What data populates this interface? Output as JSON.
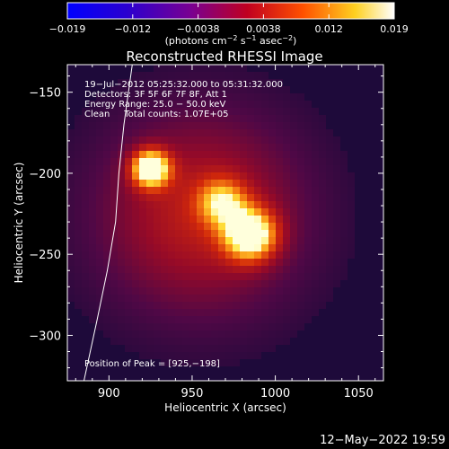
{
  "colorbar": {
    "ticks": [
      "−0.019",
      "−0.012",
      "−0.0038",
      "0.0038",
      "0.012",
      "0.019"
    ],
    "units": "(photons cm",
    "units_exp1": "−2",
    "units_mid": " s",
    "units_exp2": "−1",
    "units_mid2": " asec",
    "units_exp3": "−2",
    "units_end": ")",
    "range": [
      -0.019,
      0.019
    ]
  },
  "footer": {
    "date": "12−May−2022 19:59"
  },
  "chart_data": {
    "type": "heatmap",
    "title": "Reconstructed RHESSI Image",
    "xlabel": "Heliocentric X (arcsec)",
    "ylabel": "Heliocentric Y (arcsec)",
    "xlim": [
      875,
      1065
    ],
    "ylim": [
      -328,
      -133
    ],
    "x_ticks": [
      {
        "value": 900,
        "label": "900"
      },
      {
        "value": 950,
        "label": "950"
      },
      {
        "value": 1000,
        "label": "1000"
      },
      {
        "value": 1050,
        "label": "1050"
      }
    ],
    "y_ticks": [
      {
        "value": -150,
        "label": "−150"
      },
      {
        "value": -200,
        "label": "−200"
      },
      {
        "value": -250,
        "label": "−250"
      },
      {
        "value": -300,
        "label": "−300"
      }
    ],
    "annotations": [
      "19−Jul−2012 05:25:32.000 to 05:31:32.000",
      "Detectors: 3F 5F 6F 7F 8F, Att 1",
      "Energy Range: 25.0 − 50.0 keV",
      "Clean     Total counts: 1.07E+05"
    ],
    "peak_label": "Position of Peak = [925,−198]",
    "peak": {
      "x": 925,
      "y": -198
    },
    "sources": [
      {
        "x": 925,
        "y": -197,
        "peak": 1.0,
        "width": 8
      },
      {
        "x": 985,
        "y": -238,
        "peak": 0.92,
        "width": 11
      },
      {
        "x": 968,
        "y": -218,
        "peak": 0.55,
        "width": 10
      }
    ],
    "limb_curve": [
      [
        914,
        -133
      ],
      [
        909,
        -170
      ],
      [
        906,
        -200
      ],
      [
        904,
        -230
      ],
      [
        899,
        -260
      ],
      [
        893,
        -290
      ],
      [
        885,
        -328
      ]
    ],
    "colormap": "hot"
  }
}
